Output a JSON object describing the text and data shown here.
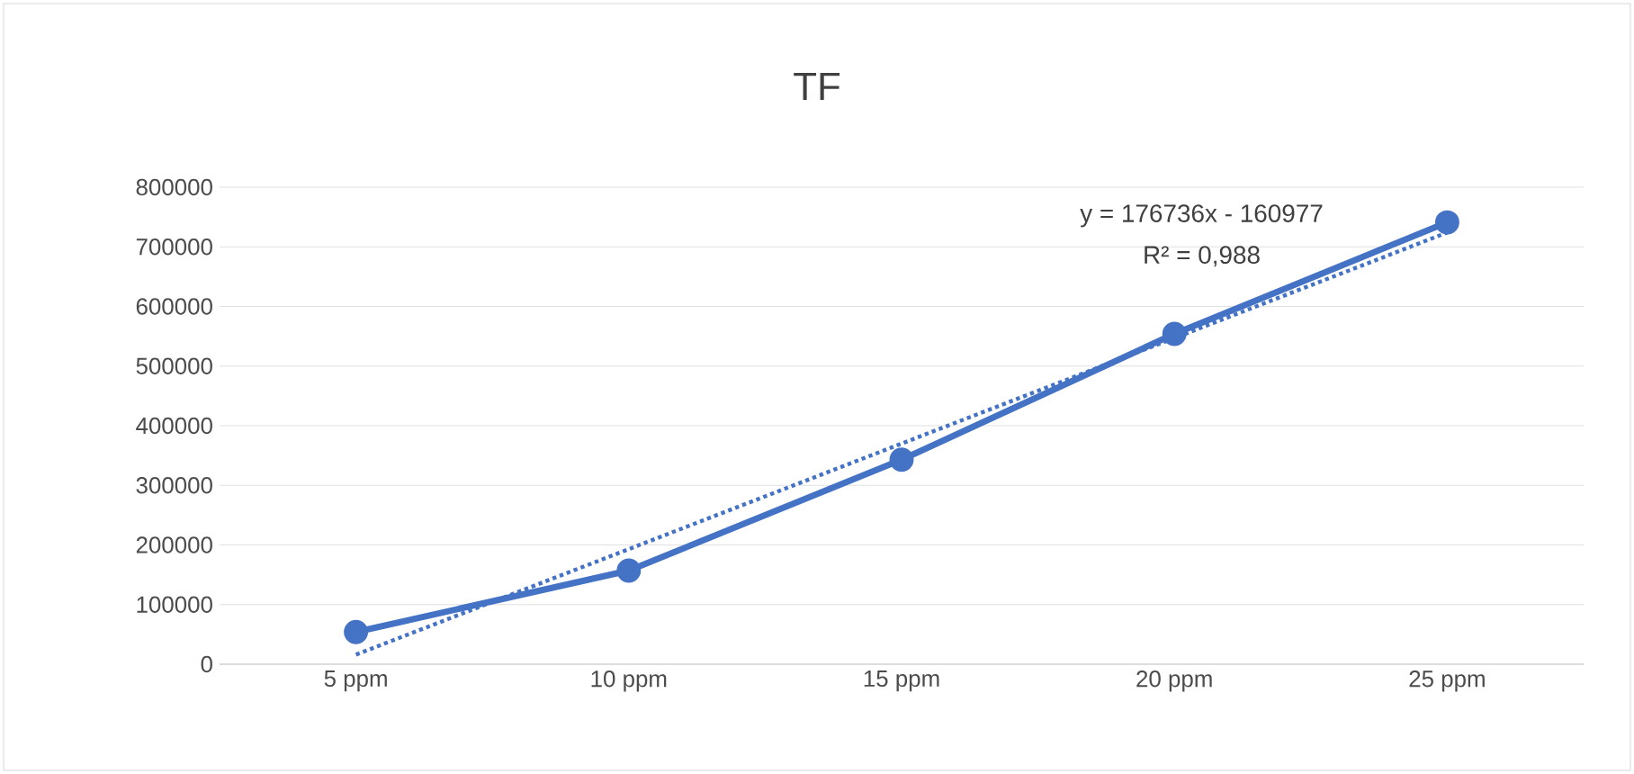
{
  "chart_data": {
    "type": "line",
    "title": "TF",
    "categories": [
      "5 ppm",
      "10 ppm",
      "15 ppm",
      "20 ppm",
      "25 ppm"
    ],
    "series": [
      {
        "color": "#4472c4",
        "values": [
          54000,
          157000,
          343000,
          554000,
          741000
        ],
        "marker": "circle",
        "line_style": "solid"
      },
      {
        "color": "#4472c4",
        "values": [
          16000,
          193000,
          370000,
          547000,
          724000
        ],
        "marker": "none",
        "line_style": "dotted"
      }
    ],
    "ylim": [
      0,
      800000
    ],
    "yticks": [
      0,
      100000,
      200000,
      300000,
      400000,
      500000,
      600000,
      700000,
      800000
    ],
    "grid": "y",
    "annotations": [
      "y = 176736x - 160977",
      "R² = 0,988"
    ]
  }
}
